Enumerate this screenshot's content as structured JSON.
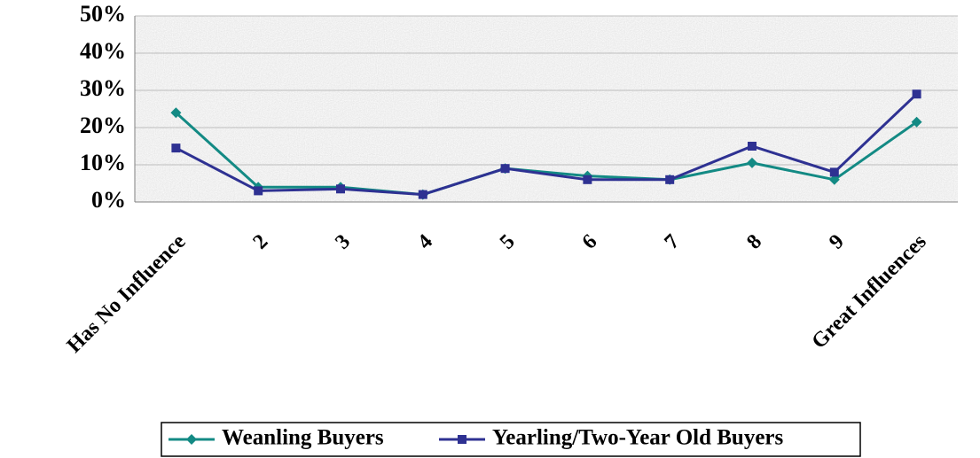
{
  "chart_data": {
    "type": "line",
    "categories": [
      "Has No Influence",
      "2",
      "3",
      "4",
      "5",
      "6",
      "7",
      "8",
      "9",
      "Great Influences"
    ],
    "series": [
      {
        "name": "Weanling Buyers",
        "color": "#138a84",
        "marker": "diamond",
        "values": [
          24,
          4,
          4,
          2,
          9,
          7,
          6,
          10.5,
          6,
          21.5
        ]
      },
      {
        "name": "Yearling/Two-Year Old Buyers",
        "color": "#2e3192",
        "marker": "square",
        "values": [
          14.5,
          3,
          3.5,
          2,
          9,
          6,
          6,
          15,
          8,
          29
        ]
      }
    ],
    "ylim": [
      0,
      50
    ],
    "yticks": [
      {
        "value": 0,
        "label": "0%"
      },
      {
        "value": 10,
        "label": "10%"
      },
      {
        "value": 20,
        "label": "20%"
      },
      {
        "value": 30,
        "label": "30%"
      },
      {
        "value": 40,
        "label": "40%"
      },
      {
        "value": 50,
        "label": "50%"
      }
    ],
    "grid": true
  }
}
